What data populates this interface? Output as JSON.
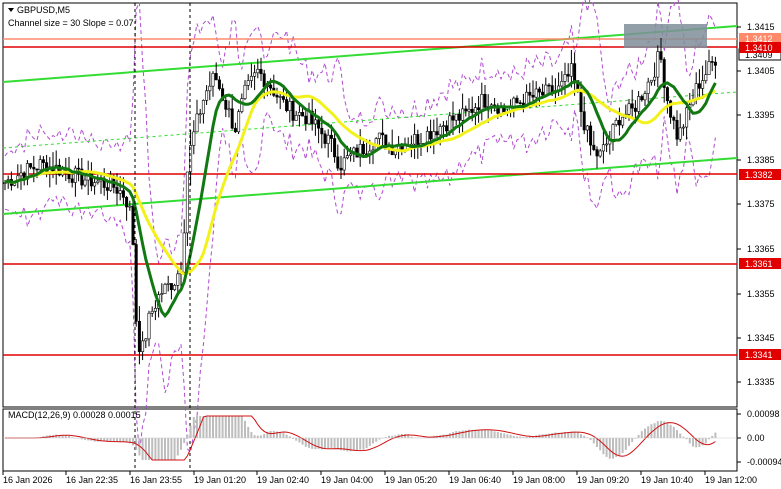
{
  "header": {
    "symbol": "GBPUSD,M5",
    "channel_info": "Channel size = 30 Slope = 0.07"
  },
  "macd": {
    "label": "MACD(12,26,9) 0.00028 0.00015",
    "axis_ticks": [
      "0.00098",
      "0.00",
      "-0.00094"
    ]
  },
  "price_axis": {
    "ticks": [
      "1.3415",
      "1.3405",
      "1.3395",
      "1.3385",
      "1.3375",
      "1.3365",
      "1.3355",
      "1.3345",
      "1.3335"
    ],
    "current_price": "1.3409"
  },
  "levels": [
    {
      "label": "1.3412",
      "color": "#ff8a6b"
    },
    {
      "label": "1.3410",
      "color": "#e00000"
    },
    {
      "label": "1.3382",
      "color": "#e00000"
    },
    {
      "label": "1.3361",
      "color": "#e00000"
    },
    {
      "label": "1.3341",
      "color": "#e00000"
    }
  ],
  "time_axis": {
    "labels": [
      "16 Jan 2026",
      "16 Jan 22:35",
      "16 Jan 23:55",
      "19 Jan 01:20",
      "19 Jan 02:40",
      "19 Jan 04:00",
      "19 Jan 05:20",
      "19 Jan 06:40",
      "19 Jan 08:00",
      "19 Jan 09:20",
      "19 Jan 10:40",
      "19 Jan 12:00"
    ]
  },
  "colors": {
    "bull_candle": "#ffffff",
    "bear_candle": "#000000",
    "ma_fast": "#127812",
    "ma_slow": "#f2f21a",
    "channel": "#33dd33",
    "bands": "#b04ad0",
    "level_line": "#e00000",
    "macd_hist": "#bdbdbd",
    "macd_signal": "#d01010"
  }
}
